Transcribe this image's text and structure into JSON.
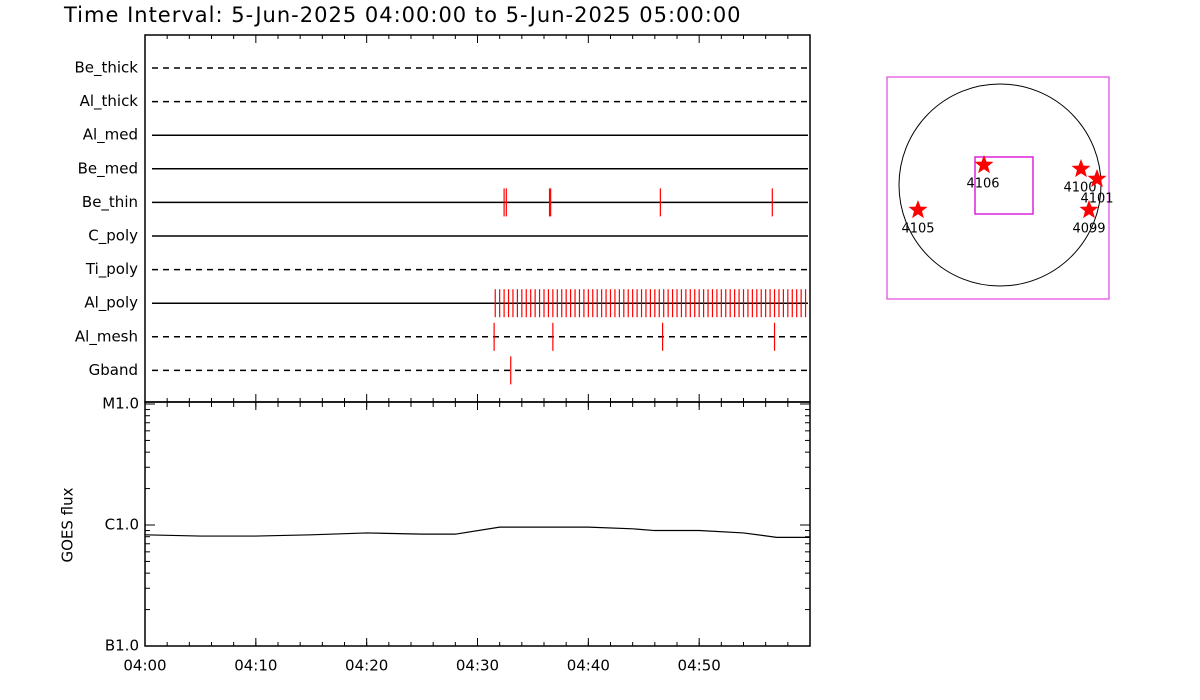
{
  "title": "Time Interval:  5-Jun-2025 04:00:00 to  5-Jun-2025 05:00:00",
  "chart_data": [
    {
      "type": "timeline",
      "xlim": [
        0,
        60
      ],
      "rows": [
        {
          "name": "Be_thick",
          "dashed": true,
          "events": []
        },
        {
          "name": "Al_thick",
          "dashed": true,
          "events": []
        },
        {
          "name": "Al_med",
          "dashed": false,
          "events": []
        },
        {
          "name": "Be_med",
          "dashed": false,
          "events": []
        },
        {
          "name": "Be_thin",
          "dashed": false,
          "events": [
            32.4,
            32.6,
            36.5,
            36.6,
            46.5,
            56.6
          ]
        },
        {
          "name": "C_poly",
          "dashed": false,
          "events": []
        },
        {
          "name": "Ti_poly",
          "dashed": true,
          "events": []
        },
        {
          "name": "Al_poly",
          "dashed": false,
          "events": [
            31.6,
            32,
            32.4,
            32.8,
            33.2,
            33.6,
            34,
            34.4,
            34.8,
            35.2,
            35.6,
            36,
            36.4,
            36.8,
            37.2,
            37.6,
            38,
            38.4,
            38.8,
            39.2,
            39.6,
            40,
            40.4,
            40.8,
            41.2,
            41.6,
            42,
            42.4,
            42.8,
            43.2,
            43.6,
            44,
            44.4,
            44.8,
            45.2,
            45.6,
            46,
            46.4,
            46.8,
            47.2,
            47.6,
            48,
            48.4,
            48.8,
            49.2,
            49.6,
            50,
            50.4,
            50.8,
            51.2,
            51.6,
            52,
            52.4,
            52.8,
            53.2,
            53.6,
            54,
            54.4,
            54.8,
            55.2,
            55.6,
            56,
            56.4,
            56.8,
            57.2,
            57.6,
            58,
            58.4,
            58.8,
            59.2,
            59.6
          ]
        },
        {
          "name": "Al_mesh",
          "dashed": true,
          "events": [
            31.5,
            36.8,
            46.7,
            56.8
          ]
        },
        {
          "name": "Gband",
          "dashed": true,
          "events": [
            33.0
          ]
        }
      ],
      "color": "#ff0000"
    },
    {
      "type": "line",
      "y_label": "GOES flux",
      "log_y": true,
      "x": [
        0,
        5,
        10,
        15,
        20,
        25,
        28,
        32,
        36,
        40,
        44,
        46,
        50,
        54,
        57,
        60
      ],
      "values": [
        8.3e-07,
        8.1e-07,
        8.1e-07,
        8.3e-07,
        8.6e-07,
        8.4e-07,
        8.4e-07,
        9.6e-07,
        9.6e-07,
        9.6e-07,
        9.3e-07,
        9e-07,
        9e-07,
        8.6e-07,
        7.9e-07,
        7.9e-07
      ],
      "color": "#000000",
      "xlim": [
        0,
        60
      ],
      "xticks": [
        {
          "value": 0,
          "label": "04:00"
        },
        {
          "value": 10,
          "label": "04:10"
        },
        {
          "value": 20,
          "label": "04:20"
        },
        {
          "value": 30,
          "label": "04:30"
        },
        {
          "value": 40,
          "label": "04:40"
        },
        {
          "value": 50,
          "label": "04:50"
        }
      ],
      "ylim": [
        1e-07,
        1e-05
      ],
      "yticks": [
        {
          "value": 1e-07,
          "label": "B1.0"
        },
        {
          "value": 1e-06,
          "label": "C1.0"
        },
        {
          "value": 1e-05,
          "label": "M1.0"
        }
      ]
    }
  ],
  "map": {
    "regions": [
      "4106",
      "4100",
      "4101",
      "4105",
      "4099"
    ]
  }
}
